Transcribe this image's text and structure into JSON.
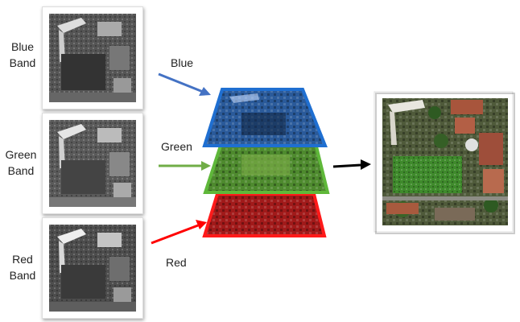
{
  "bands": [
    {
      "label_line1": "Blue",
      "label_line2": "Band"
    },
    {
      "label_line1": "Green",
      "label_line2": "Band"
    },
    {
      "label_line1": "Red",
      "label_line2": "Band"
    }
  ],
  "arrows": [
    {
      "label": "Blue",
      "color": "#4472c4"
    },
    {
      "label": "Green",
      "color": "#70ad47"
    },
    {
      "label": "Red",
      "color": "#ff0000"
    }
  ],
  "layers": [
    {
      "name": "blue-layer",
      "border": "#1f6fd1",
      "tint": "#2a5a9a"
    },
    {
      "name": "green-layer",
      "border": "#5fb83a",
      "tint": "#4e8a2e"
    },
    {
      "name": "red-layer",
      "border": "#ff1a1a",
      "tint": "#a11a1a"
    }
  ],
  "output_arrow_color": "#000000"
}
